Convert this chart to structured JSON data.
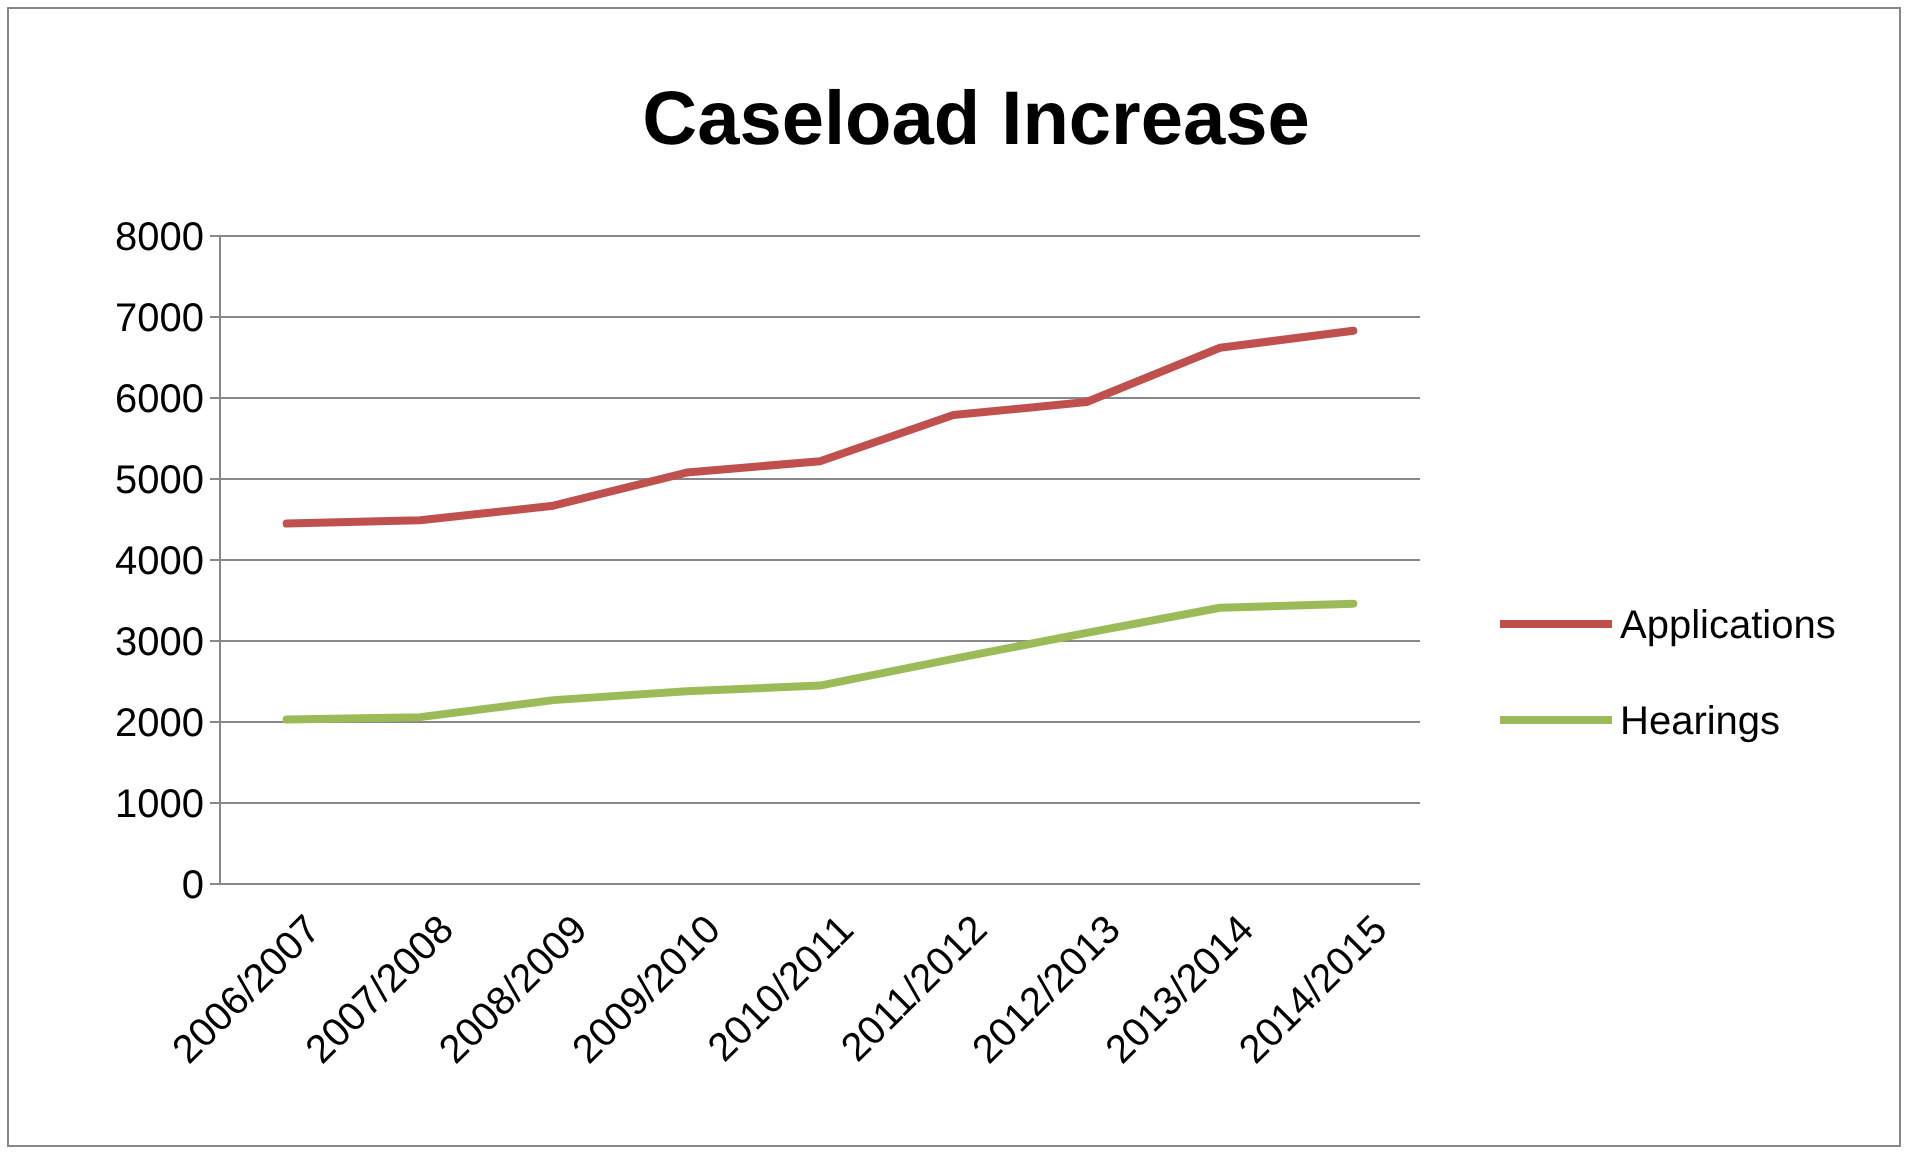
{
  "chart_data": {
    "type": "line",
    "title": "Caseload Increase",
    "categories": [
      "2006/2007",
      "2007/2008",
      "2008/2009",
      "2009/2010",
      "2010/2011",
      "2011/2012",
      "2012/2013",
      "2013/2014",
      "2014/2015"
    ],
    "series": [
      {
        "name": "Applications",
        "color": "#c0504d",
        "values": [
          4450,
          4490,
          4670,
          5080,
          5220,
          5790,
          5950,
          6620,
          6830
        ]
      },
      {
        "name": "Hearings",
        "color": "#9bbb59",
        "values": [
          2030,
          2060,
          2270,
          2380,
          2450,
          2780,
          3100,
          3410,
          3460
        ]
      }
    ],
    "ylim": [
      0,
      8000
    ],
    "yticks": [
      0,
      1000,
      2000,
      3000,
      4000,
      5000,
      6000,
      7000,
      8000
    ],
    "grid": "y",
    "legend": "right",
    "marker": "none",
    "line_style": "solid"
  }
}
